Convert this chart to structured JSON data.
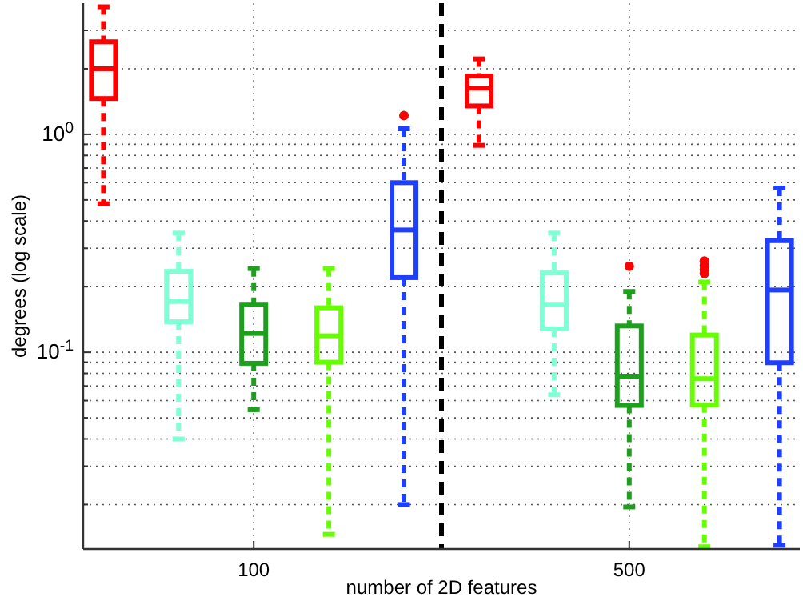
{
  "chart_data": {
    "type": "box",
    "xlabel": "number of 2D features",
    "ylabel": "degrees (log scale)",
    "categories": [
      null,
      null,
      "100",
      null,
      null,
      null,
      null,
      "500",
      null,
      null
    ],
    "colors": [
      "#ff0000",
      "#7fffd4",
      "#1ea01e",
      "#66ff00",
      "#1f3fff",
      "#ff0000",
      "#7fffd4",
      "#1ea01e",
      "#66ff00",
      "#1f3fff"
    ],
    "boxes": [
      {
        "low": 0.48,
        "q1": 1.46,
        "median": 2.0,
        "q3": 2.66,
        "high": 3.85
      },
      {
        "low": 0.04,
        "q1": 0.138,
        "median": 0.171,
        "q3": 0.235,
        "high": 0.352
      },
      {
        "low": 0.0545,
        "q1": 0.089,
        "median": 0.122,
        "q3": 0.166,
        "high": 0.242
      },
      {
        "low": 0.0146,
        "q1": 0.09,
        "median": 0.119,
        "q3": 0.16,
        "high": 0.242
      },
      {
        "low": 0.02,
        "q1": 0.22,
        "median": 0.364,
        "q3": 0.6,
        "high": 1.06,
        "outliers": [
          1.22
        ]
      },
      {
        "low": 0.89,
        "q1": 1.35,
        "median": 1.63,
        "q3": 1.85,
        "high": 2.22
      },
      {
        "low": 0.0638,
        "q1": 0.128,
        "median": 0.166,
        "q3": 0.231,
        "high": 0.352
      },
      {
        "low": 0.0195,
        "q1": 0.057,
        "median": 0.0777,
        "q3": 0.132,
        "high": 0.19,
        "outliers": [
          0.248
        ]
      },
      {
        "low": 0.0128,
        "q1": 0.0574,
        "median": 0.0756,
        "q3": 0.12,
        "high": 0.21,
        "outliers": [
          0.23,
          0.24,
          0.25,
          0.262
        ]
      },
      {
        "low": 0.013,
        "q1": 0.0895,
        "median": 0.193,
        "q3": 0.325,
        "high": 0.567
      }
    ],
    "log": "y",
    "ylim": [
      0.0125,
      4
    ],
    "yticks": [
      {
        "value": 0.02,
        "label": null
      },
      {
        "value": 0.03,
        "label": null
      },
      {
        "value": 0.04,
        "label": null
      },
      {
        "value": 0.05,
        "label": null
      },
      {
        "value": 0.06,
        "label": null
      },
      {
        "value": 0.07,
        "label": null
      },
      {
        "value": 0.08,
        "label": null
      },
      {
        "value": 0.09,
        "label": null
      },
      {
        "value": 0.1,
        "label": "10$^{-1}$"
      },
      {
        "value": 0.2,
        "label": null
      },
      {
        "value": 0.3,
        "label": null
      },
      {
        "value": 0.4,
        "label": null
      },
      {
        "value": 0.5,
        "label": null
      },
      {
        "value": 0.6,
        "label": null
      },
      {
        "value": 0.7,
        "label": null
      },
      {
        "value": 0.8,
        "label": null
      },
      {
        "value": 0.9,
        "label": null
      },
      {
        "value": 1,
        "label": "10$^{0}$"
      },
      {
        "value": 2,
        "label": null
      },
      {
        "value": 3,
        "label": null
      }
    ],
    "grid": true,
    "line_style": "dashed"
  }
}
